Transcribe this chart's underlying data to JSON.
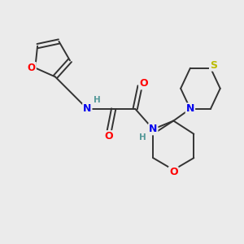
{
  "background_color": "#ebebeb",
  "bond_color": "#333333",
  "atom_colors": {
    "O": "#ff0000",
    "N": "#0000ee",
    "S": "#bbbb00",
    "H": "#559999",
    "C": "#333333"
  },
  "figsize": [
    3.0,
    3.0
  ],
  "dpi": 100
}
